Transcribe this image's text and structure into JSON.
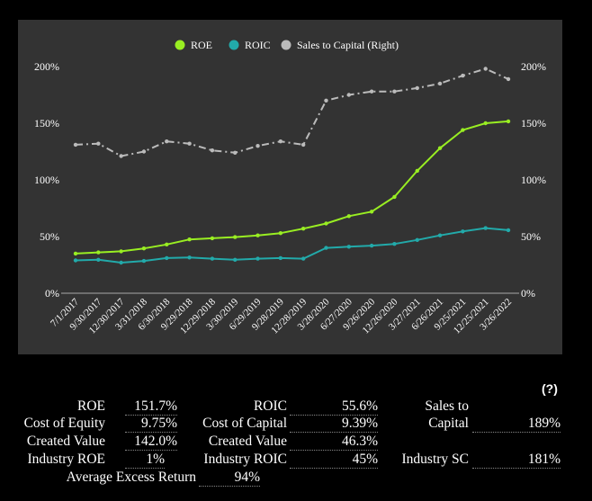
{
  "chart_data": {
    "type": "line",
    "categories": [
      "7/1/2017",
      "9/30/2017",
      "12/30/2017",
      "3/31/2018",
      "6/30/2018",
      "9/29/2018",
      "12/29/2018",
      "3/30/2019",
      "6/29/2019",
      "9/28/2019",
      "12/28/2019",
      "3/28/2020",
      "6/27/2020",
      "9/26/2020",
      "12/26/2020",
      "3/27/2021",
      "6/26/2021",
      "9/25/2021",
      "12/25/2021",
      "3/26/2022"
    ],
    "series": [
      {
        "name": "ROE",
        "color": "#99ee22",
        "axis": "left",
        "style": "solid",
        "values": [
          35,
          36,
          37,
          39.5,
          43,
          47.5,
          48.5,
          49.5,
          51,
          53,
          57,
          61.5,
          68,
          72,
          85,
          108,
          128,
          144,
          150,
          151.7
        ]
      },
      {
        "name": "ROIC",
        "color": "#22aaaa",
        "axis": "left",
        "style": "solid",
        "values": [
          29,
          29.5,
          27,
          28.5,
          31,
          31.5,
          30.5,
          29.5,
          30.5,
          31,
          30.5,
          40,
          41,
          42,
          43.5,
          47,
          51,
          54.5,
          57.5,
          55.6
        ]
      },
      {
        "name": "Sales to Capital (Right)",
        "color": "#bbbbbb",
        "axis": "right",
        "style": "dashdot",
        "values": [
          131,
          132,
          121,
          125,
          134,
          132,
          126,
          124,
          130,
          134,
          131,
          170,
          175,
          178,
          178,
          181,
          185,
          192,
          198,
          189
        ]
      }
    ],
    "y_left": {
      "ticks": [
        "0%",
        "50%",
        "100%",
        "150%",
        "200%"
      ],
      "range": [
        0,
        200
      ]
    },
    "y_right": {
      "ticks": [
        "0%",
        "50%",
        "100%",
        "150%",
        "200%"
      ],
      "range": [
        0,
        200
      ]
    },
    "legend_position": "top",
    "grid": false
  },
  "stats": {
    "roe_label": "ROE",
    "roe_value": "151.7%",
    "coe_label": "Cost of Equity",
    "coe_value": "9.75%",
    "cv_left_label": "Created Value",
    "cv_left_value": "142.0%",
    "iroe_label": "Industry ROE",
    "iroe_value": "1%",
    "aer_label": "Average Excess Return",
    "aer_value": "94%",
    "roic_label": "ROIC",
    "roic_value": "55.6%",
    "coc_label": "Cost of Capital",
    "coc_value": "9.39%",
    "cv_right_label": "Created Value",
    "cv_right_value": "46.3%",
    "iroic_label": "Industry ROIC",
    "iroic_value": "45%",
    "stc_label_1": "Sales to",
    "stc_label_2": "Capital",
    "stc_value": "189%",
    "isc_label": "Industry SC",
    "isc_value": "181%",
    "help": "(?)"
  }
}
